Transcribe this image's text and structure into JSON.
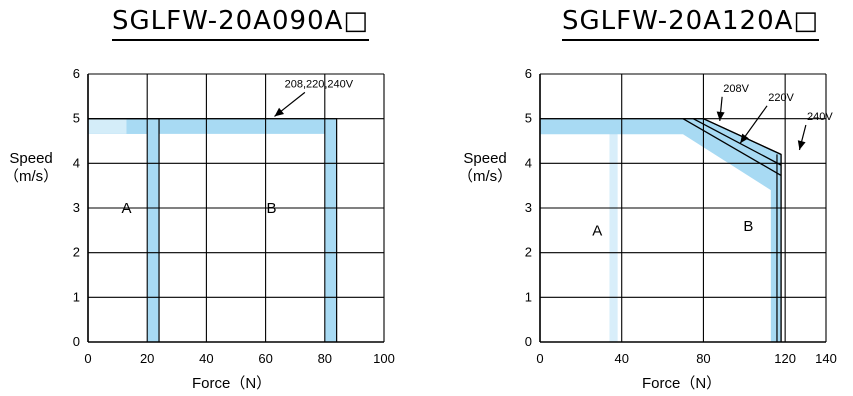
{
  "chart_data": [
    {
      "type": "area",
      "title": "SGLFW-20A090A□",
      "xlabel": "Force（N）",
      "ylabel": [
        "Speed",
        "（m/s）"
      ],
      "xlim": [
        0,
        100
      ],
      "ylim": [
        0,
        6
      ],
      "xticks": [
        0,
        20,
        40,
        60,
        80,
        100
      ],
      "yticks": [
        0,
        1,
        2,
        3,
        4,
        5,
        6
      ],
      "grid": true,
      "regions": [
        {
          "name": "A",
          "label_at": [
            13,
            3
          ]
        },
        {
          "name": "B",
          "label_at": [
            62,
            3
          ]
        }
      ],
      "series": [
        {
          "kind": "boundary-band",
          "outer": [
            [
              0,
              5
            ],
            [
              84,
              5
            ],
            [
              84,
              0
            ]
          ],
          "inner": [
            [
              0,
              4.66
            ],
            [
              80,
              4.66
            ],
            [
              80,
              0
            ]
          ],
          "color": "#a8daf3",
          "gap_x": [
            22,
            22.5
          ]
        },
        {
          "kind": "boundary-band",
          "outer": [
            [
              0,
              5
            ],
            [
              24,
              5
            ],
            [
              24,
              0
            ]
          ],
          "inner": [
            [
              0,
              4.66
            ],
            [
              20,
              4.66
            ],
            [
              20,
              0
            ]
          ],
          "color": "#a8daf3",
          "faded_x_max": 13
        }
      ],
      "annotations": [
        {
          "text": "208,220,240V",
          "at": [
            78,
            5.7
          ],
          "arrow_to": [
            63,
            5.05
          ]
        }
      ]
    },
    {
      "type": "area",
      "title": "SGLFW-20A120A□",
      "xlabel": "Force（N）",
      "ylabel": [
        "Speed",
        "（m/s）"
      ],
      "xlim": [
        0,
        140
      ],
      "ylim": [
        0,
        6
      ],
      "xticks": [
        0,
        40,
        80,
        120,
        140
      ],
      "yticks": [
        0,
        1,
        2,
        3,
        4,
        5,
        6
      ],
      "grid": true,
      "regions": [
        {
          "name": "A",
          "label_at": [
            28,
            2.5
          ]
        },
        {
          "name": "B",
          "label_at": [
            102,
            2.6
          ]
        }
      ],
      "series": [
        {
          "kind": "boundary-band",
          "outer": [
            [
              0,
              5
            ],
            [
              80,
              5
            ],
            [
              118,
              4.2
            ],
            [
              118,
              0
            ]
          ],
          "inner": [
            [
              0,
              4.65
            ],
            [
              70,
              4.65
            ],
            [
              113,
              3.4
            ],
            [
              113,
              0
            ]
          ],
          "color": "#a8daf3"
        },
        {
          "kind": "boundary-band",
          "outer": [
            [
              0,
              5
            ],
            [
              38,
              5
            ],
            [
              38,
              0
            ]
          ],
          "inner": [
            [
              0,
              4.66
            ],
            [
              34,
              4.66
            ],
            [
              34,
              0
            ]
          ],
          "color": "#a8daf3",
          "faded": true
        }
      ],
      "voltage_lines": [
        {
          "name": "208V",
          "points": [
            [
              70,
              5
            ],
            [
              118,
              3.73
            ]
          ]
        },
        {
          "name": "220V",
          "points": [
            [
              75,
              5
            ],
            [
              118,
              3.96
            ]
          ]
        },
        {
          "name": "240V",
          "points": [
            [
              80,
              5
            ],
            [
              118,
              4.2
            ]
          ]
        }
      ],
      "edges": [
        {
          "points": [
            [
              116,
              4.2
            ],
            [
              116,
              0
            ]
          ]
        },
        {
          "points": [
            [
              118,
              4.2
            ],
            [
              118,
              0
            ]
          ]
        }
      ],
      "annotations": [
        {
          "text": "208V",
          "at": [
            96,
            5.6
          ],
          "arrow_to": [
            88,
            4.95
          ]
        },
        {
          "text": "220V",
          "at": [
            118,
            5.4
          ],
          "arrow_to": [
            98,
            4.45
          ]
        },
        {
          "text": "240V",
          "at": [
            137,
            4.97
          ],
          "arrow_to": [
            127,
            4.3
          ]
        }
      ]
    }
  ]
}
